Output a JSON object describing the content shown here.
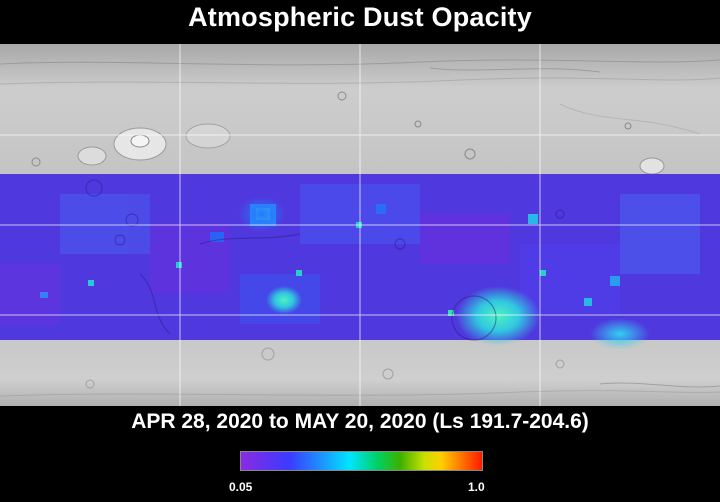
{
  "title": "Atmospheric Dust Opacity",
  "date_range": "APR 28, 2020 to MAY 20, 2020 (Ls 191.7-204.6)",
  "colorbar": {
    "min_label": "0.05",
    "max_label": "1.0",
    "colors": [
      "#8a2be2",
      "#3b3bff",
      "#1e90ff",
      "#00e5ff",
      "#00d060",
      "#3cb000",
      "#c8e000",
      "#ffd000",
      "#ff7a00",
      "#ff1a00"
    ]
  },
  "map": {
    "base": "shaded-relief-mars-basemap",
    "overlay_color": "#5530e0",
    "highlight_colors": [
      "#20d0d0",
      "#30b0f0",
      "#40e090",
      "#2060ff"
    ]
  }
}
